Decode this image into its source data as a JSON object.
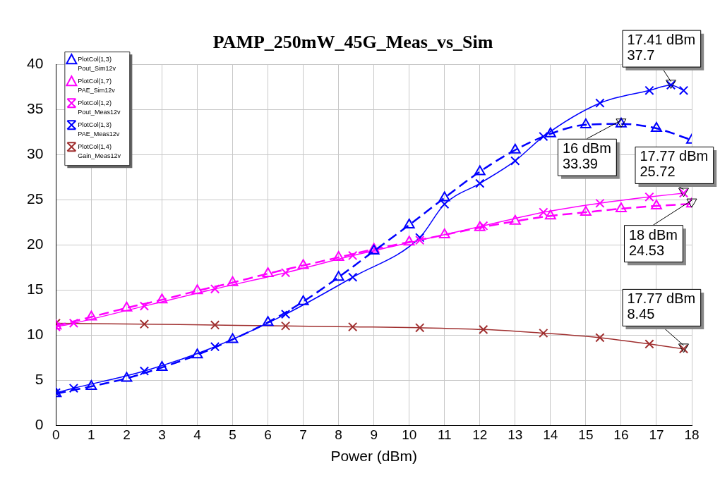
{
  "chart_data": {
    "type": "line",
    "title": "PAMP_250mW_45G_Meas_vs_Sim",
    "xlabel": "Power (dBm)",
    "xlim": [
      0,
      18
    ],
    "xticks": [
      0,
      1,
      2,
      3,
      4,
      5,
      6,
      7,
      8,
      9,
      10,
      11,
      12,
      13,
      14,
      15,
      16,
      17,
      18
    ],
    "ylim": [
      0,
      40
    ],
    "yticks": [
      0,
      5,
      10,
      15,
      20,
      25,
      30,
      35,
      40
    ],
    "grid": true,
    "legend": "top left",
    "series": [
      {
        "name": "PlotCol(1,3) Pout_Sim12v",
        "color": "#0000ff",
        "marker": "triangle",
        "line_style": "dashed",
        "x": [
          0,
          1,
          2,
          3,
          4,
          5,
          6,
          7,
          8,
          9,
          10,
          11,
          12,
          13,
          14,
          15,
          16,
          17,
          18
        ],
        "values": [
          3.5,
          4.3,
          5.2,
          6.4,
          7.8,
          9.5,
          11.4,
          13.7,
          16.4,
          19.3,
          22.2,
          25.2,
          28.1,
          30.5,
          32.3,
          33.3,
          33.39,
          32.9,
          31.6
        ]
      },
      {
        "name": "PlotCol(1,7) PAE_Sim12v",
        "color": "#ff00ff",
        "marker": "triangle",
        "line_style": "dashed",
        "x": [
          0,
          1,
          2,
          3,
          4,
          5,
          6,
          7,
          8,
          9,
          10,
          11,
          12,
          13,
          14,
          15,
          16,
          17,
          18
        ],
        "values": [
          11,
          12,
          13,
          13.9,
          14.9,
          15.8,
          16.8,
          17.7,
          18.6,
          19.5,
          20.3,
          21.1,
          21.9,
          22.6,
          23.2,
          23.6,
          24,
          24.3,
          24.53
        ]
      },
      {
        "name": "PlotCol(1,2) Pout_Meas12v",
        "color": "#ff00ff",
        "marker": "cross",
        "line_style": "solid",
        "x": [
          0,
          0.5,
          2.5,
          4.5,
          6.5,
          8.4,
          10.3,
          12.1,
          13.8,
          15.4,
          16.8,
          17.77
        ],
        "values": [
          10.9,
          11.3,
          13.2,
          15.1,
          16.9,
          18.8,
          20.5,
          22.1,
          23.6,
          24.6,
          25.3,
          25.72
        ]
      },
      {
        "name": "PlotCol(1,3) PAE_Meas12v",
        "color": "#0000ff",
        "marker": "cross",
        "line_style": "solid",
        "x": [
          0,
          0.5,
          2.5,
          4.5,
          6.5,
          8.4,
          10.3,
          11,
          12,
          13,
          13.8,
          15.4,
          16.8,
          17.41,
          17.77
        ],
        "values": [
          3.6,
          4.1,
          6,
          8.7,
          12.3,
          16.4,
          20.8,
          24.5,
          26.8,
          29.3,
          32,
          35.7,
          37.1,
          37.7,
          37.1
        ]
      },
      {
        "name": "PlotCol(1,4) Gain_Meas12v",
        "color": "#a03030",
        "marker": "cross",
        "line_style": "solid",
        "x": [
          0,
          2.5,
          4.5,
          6.5,
          8.4,
          10.3,
          12.1,
          13.8,
          15.4,
          16.8,
          17.77
        ],
        "values": [
          11.3,
          11.2,
          11.1,
          11,
          10.9,
          10.8,
          10.6,
          10.2,
          9.7,
          9,
          8.45
        ]
      }
    ],
    "annotations": [
      {
        "text": "17.41 dBm\n37.7",
        "x": 17.41,
        "y": 37.7
      },
      {
        "text": "16 dBm\n33.39",
        "x": 16,
        "y": 33.39
      },
      {
        "text": "17.77 dBm\n25.72",
        "x": 17.77,
        "y": 25.72
      },
      {
        "text": "18 dBm\n24.53",
        "x": 18,
        "y": 24.53
      },
      {
        "text": "17.77 dBm\n8.45",
        "x": 17.77,
        "y": 8.45
      }
    ]
  }
}
